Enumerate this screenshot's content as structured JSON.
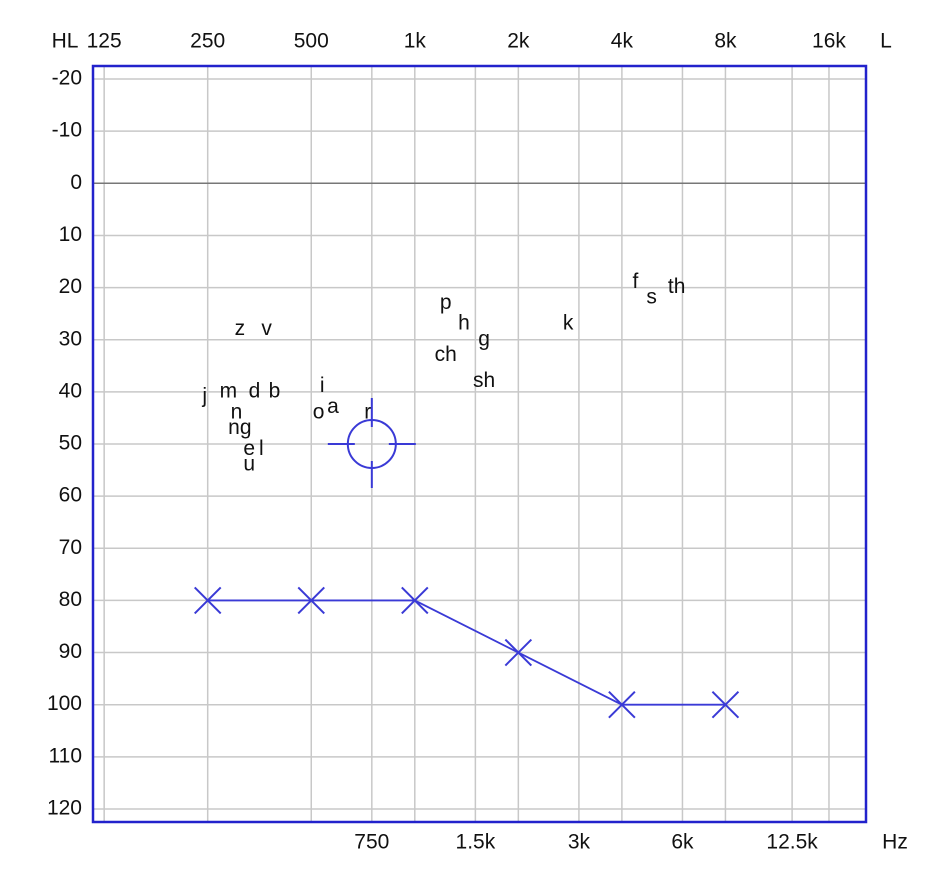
{
  "chart_data": {
    "type": "audiogram",
    "y_label": "HL",
    "x_label": "Hz",
    "ear_label": "L",
    "xlim": [
      116,
      20500
    ],
    "ylim": [
      -22.5,
      122.5
    ],
    "log_x": true,
    "grid": true,
    "xticks_top": [
      125,
      250,
      500,
      {
        "value": 1000,
        "label": "1k"
      },
      {
        "value": 2000,
        "label": "2k"
      },
      {
        "value": 4000,
        "label": "4k"
      },
      {
        "value": 8000,
        "label": "8k"
      },
      {
        "value": 16000,
        "label": "16k"
      }
    ],
    "xticks_bottom": [
      750,
      {
        "value": 1500,
        "label": "1.5k"
      },
      {
        "value": 3000,
        "label": "3k"
      },
      {
        "value": 6000,
        "label": "6k"
      },
      {
        "value": 12500,
        "label": "12.5k"
      }
    ],
    "yticks": [
      -20,
      -10,
      0,
      10,
      20,
      30,
      40,
      50,
      60,
      70,
      80,
      90,
      100,
      110,
      120
    ],
    "x": [
      250,
      500,
      1000,
      2000,
      4000,
      8000
    ],
    "series": [
      {
        "color": "#3a3ad6",
        "values": [
          80,
          80,
          80,
          90,
          100,
          100
        ]
      }
    ],
    "cursor": {
      "x": 750,
      "y": 50,
      "color": "#3a3ad6"
    },
    "speech_sounds": [
      {
        "label": "z",
        "x": 310,
        "y": 28
      },
      {
        "label": "v",
        "x": 371,
        "y": 28
      },
      {
        "label": "j",
        "x": 245,
        "y": 41
      },
      {
        "label": "m",
        "x": 287,
        "y": 40
      },
      {
        "label": "d",
        "x": 342,
        "y": 40
      },
      {
        "label": "b",
        "x": 391,
        "y": 40
      },
      {
        "label": "n",
        "x": 303,
        "y": 44
      },
      {
        "label": "ng",
        "x": 310,
        "y": 47
      },
      {
        "label": "e",
        "x": 330,
        "y": 51
      },
      {
        "label": "l",
        "x": 358,
        "y": 51
      },
      {
        "label": "u",
        "x": 330,
        "y": 54
      },
      {
        "label": "i",
        "x": 538,
        "y": 39
      },
      {
        "label": "o",
        "x": 525,
        "y": 44
      },
      {
        "label": "a",
        "x": 578,
        "y": 43
      },
      {
        "label": "r",
        "x": 730,
        "y": 44
      },
      {
        "label": "p",
        "x": 1230,
        "y": 23
      },
      {
        "label": "h",
        "x": 1390,
        "y": 27
      },
      {
        "label": "g",
        "x": 1590,
        "y": 30
      },
      {
        "label": "ch",
        "x": 1230,
        "y": 33
      },
      {
        "label": "sh",
        "x": 1590,
        "y": 38
      },
      {
        "label": "k",
        "x": 2790,
        "y": 27
      },
      {
        "label": "f",
        "x": 4380,
        "y": 19
      },
      {
        "label": "s",
        "x": 4880,
        "y": 22
      },
      {
        "label": "th",
        "x": 5770,
        "y": 20
      }
    ]
  }
}
